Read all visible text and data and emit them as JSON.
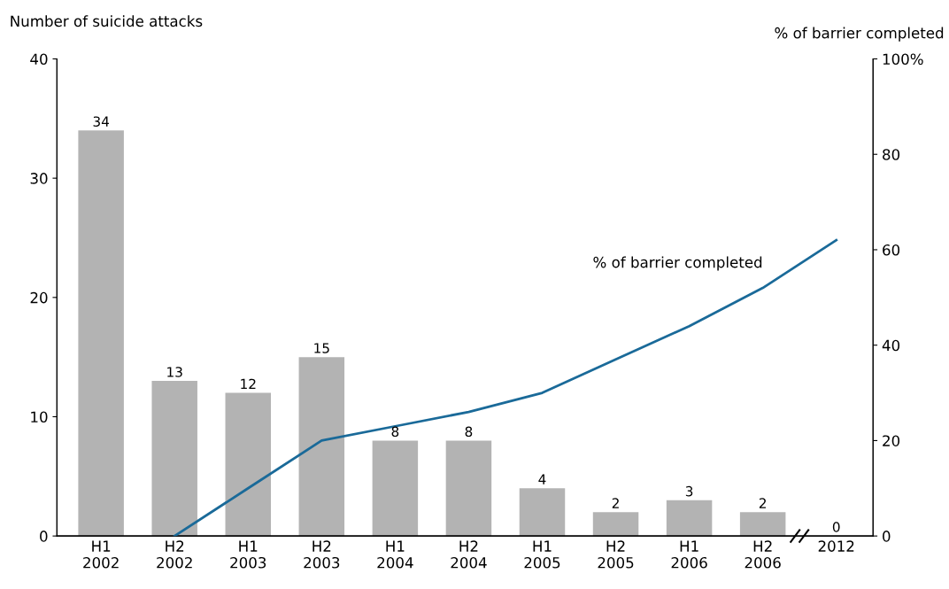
{
  "chart_data": {
    "type": "bar",
    "ylabel": "Number of suicide attacks",
    "y2label": "% of barrier completed",
    "categories": [
      "H1\n2002",
      "H2\n2002",
      "H1\n2003",
      "H2\n2003",
      "H1\n2004",
      "H2\n2004",
      "H1\n2005",
      "H2\n2005",
      "H1\n2006",
      "H2\n2006",
      "2012"
    ],
    "series": [
      {
        "type": "bar",
        "color": "#b3b3b3",
        "values": [
          34,
          13,
          12,
          15,
          8,
          8,
          4,
          2,
          3,
          2,
          0
        ],
        "data_labels": true
      },
      {
        "type": "line",
        "axis": "y2",
        "name": "% of barrier completed",
        "color": "#1a6a99",
        "values": [
          null,
          0,
          10,
          20,
          23,
          26,
          30,
          37,
          44,
          52,
          62
        ]
      }
    ],
    "ylim": [
      0,
      40
    ],
    "yticks": [
      0,
      10,
      20,
      30,
      40
    ],
    "y2lim": [
      0,
      100
    ],
    "y2ticks": [
      0,
      20,
      40,
      60,
      80,
      {
        "value": 100,
        "label": "100%"
      }
    ],
    "grid": false,
    "legend": false
  }
}
